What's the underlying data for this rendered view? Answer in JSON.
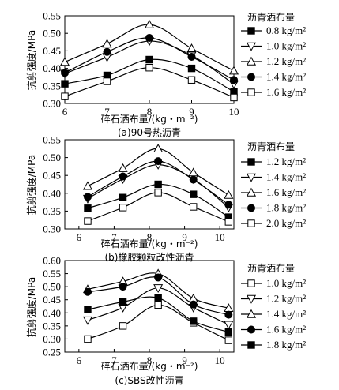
{
  "chart_data": [
    {
      "type": "line",
      "title": "(a)90号热沥青",
      "xlabel": "碎石洒布量/(kg・m⁻²)",
      "ylabel": "抗剪强度/MPa",
      "xlim": [
        6,
        10
      ],
      "ylim": [
        0.3,
        0.55
      ],
      "xticks": [
        "6",
        "7",
        "8",
        "9",
        "10"
      ],
      "yticks": [
        "0.30",
        "0.35",
        "0.40",
        "0.45",
        "0.50",
        "0.55"
      ],
      "legend_title": "沥青洒布量",
      "x": [
        6,
        7,
        8,
        9,
        10
      ],
      "series": [
        {
          "name": "0.8 kg/m²",
          "marker": "square-filled",
          "values": [
            0.356,
            0.38,
            0.425,
            0.4,
            0.333
          ]
        },
        {
          "name": "1.0 kg/m²",
          "marker": "triangle-down-open",
          "values": [
            0.385,
            0.432,
            0.478,
            0.437,
            0.355
          ]
        },
        {
          "name": "1.2 kg/m²",
          "marker": "triangle-up-open",
          "values": [
            0.418,
            0.47,
            0.525,
            0.457,
            0.393
          ]
        },
        {
          "name": "1.4 kg/m²",
          "marker": "circle-filled",
          "values": [
            0.387,
            0.447,
            0.487,
            0.433,
            0.367
          ]
        },
        {
          "name": "1.6 kg/m²",
          "marker": "square-open",
          "values": [
            0.32,
            0.363,
            0.402,
            0.367,
            0.317
          ]
        }
      ]
    },
    {
      "type": "line",
      "title": "(b)橡胶颗粒改性沥青",
      "xlabel": "碎石洒布量/(kg・m⁻²)",
      "ylabel": "抗剪强度/MPa",
      "xlim": [
        5.6,
        10.4
      ],
      "ylim": [
        0.3,
        0.55
      ],
      "xticks": [
        "6",
        "7",
        "8",
        "9",
        "10"
      ],
      "yticks": [
        "0.30",
        "0.35",
        "0.40",
        "0.45",
        "0.50",
        "0.55"
      ],
      "legend_title": "沥青洒布量",
      "x": [
        6.25,
        7.25,
        8.25,
        9.25,
        10.25
      ],
      "series": [
        {
          "name": "1.2 kg/m²",
          "marker": "square-filled",
          "values": [
            0.358,
            0.388,
            0.425,
            0.397,
            0.333
          ]
        },
        {
          "name": "1.4 kg/m²",
          "marker": "triangle-down-open",
          "values": [
            0.385,
            0.44,
            0.48,
            0.44,
            0.36
          ]
        },
        {
          "name": "1.6 kg/m²",
          "marker": "triangle-up-open",
          "values": [
            0.42,
            0.47,
            0.525,
            0.458,
            0.395
          ]
        },
        {
          "name": "1.8 kg/m²",
          "marker": "circle-filled",
          "values": [
            0.39,
            0.447,
            0.49,
            0.438,
            0.368
          ]
        },
        {
          "name": "2.0 kg/m²",
          "marker": "square-open",
          "values": [
            0.322,
            0.36,
            0.402,
            0.362,
            0.32
          ]
        }
      ]
    },
    {
      "type": "line",
      "title": "(c)SBS改性沥青",
      "xlabel": "碎石洒布量/(kg・m⁻²)",
      "ylabel": "抗剪强度/MPa",
      "xlim": [
        5.6,
        10.4
      ],
      "ylim": [
        0.25,
        0.6
      ],
      "xticks": [
        "6",
        "7",
        "8",
        "9",
        "10"
      ],
      "yticks": [
        "0.25",
        "0.30",
        "0.35",
        "0.40",
        "0.45",
        "0.50",
        "0.55",
        "0.60"
      ],
      "legend_title": "沥青洒布量",
      "x": [
        6.25,
        7.25,
        8.25,
        9.25,
        10.25
      ],
      "series": [
        {
          "name": "1.0 kg/m²",
          "marker": "square-open",
          "values": [
            0.3,
            0.35,
            0.43,
            0.362,
            0.295
          ]
        },
        {
          "name": "1.2 kg/m²",
          "marker": "triangle-down-open",
          "values": [
            0.372,
            0.42,
            0.495,
            0.42,
            0.355
          ]
        },
        {
          "name": "1.4 kg/m²",
          "marker": "triangle-up-open",
          "values": [
            0.49,
            0.52,
            0.55,
            0.455,
            0.418
          ]
        },
        {
          "name": "1.6 kg/m²",
          "marker": "circle-filled",
          "values": [
            0.48,
            0.5,
            0.535,
            0.432,
            0.393
          ]
        },
        {
          "name": "1.8 kg/m²",
          "marker": "square-filled",
          "values": [
            0.412,
            0.442,
            0.457,
            0.368,
            0.327
          ]
        }
      ]
    }
  ]
}
